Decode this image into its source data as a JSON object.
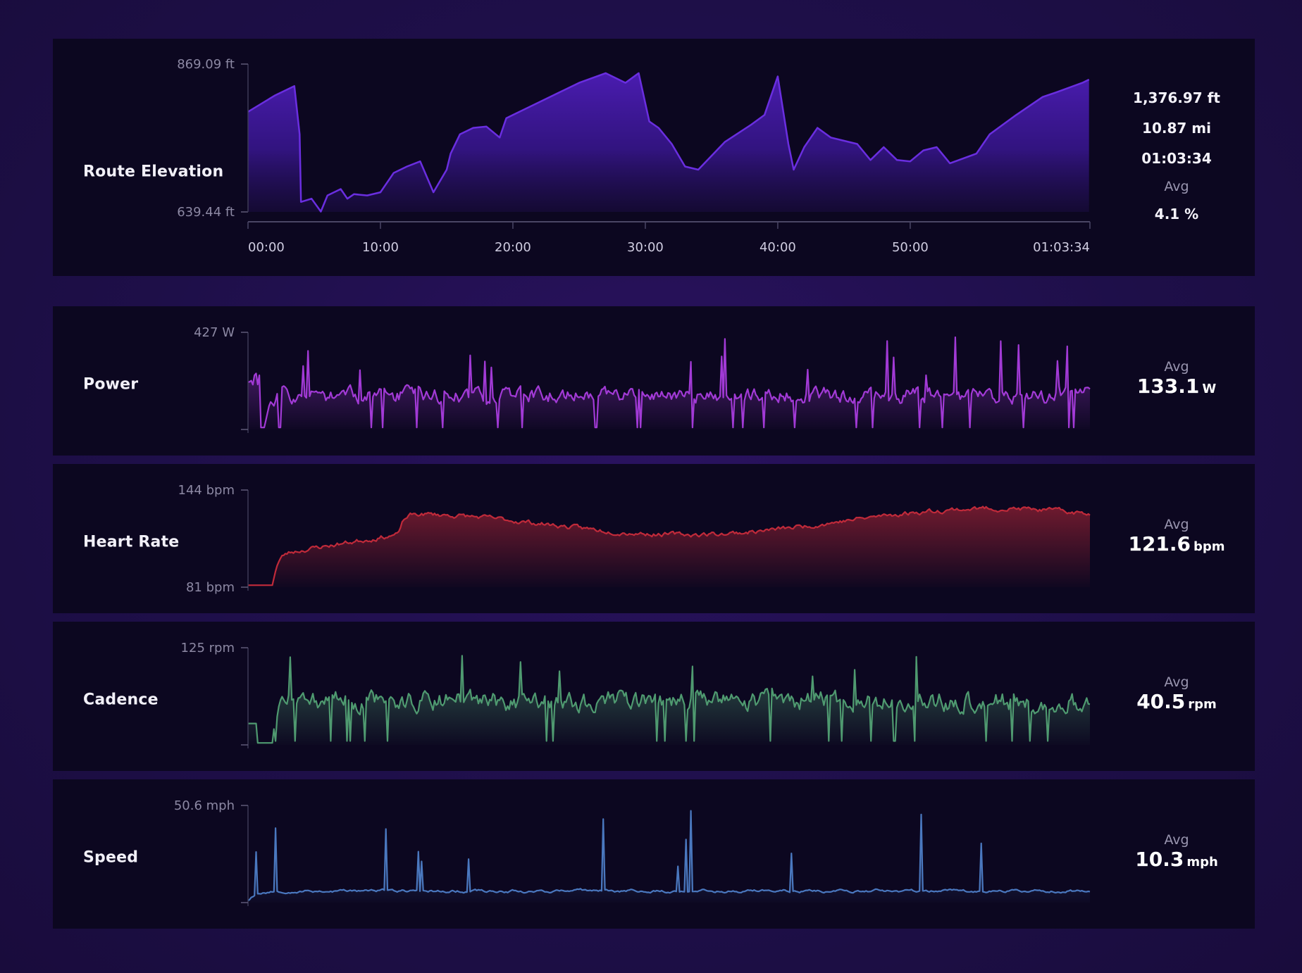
{
  "elevation": {
    "label": "Route Elevation",
    "color": "#6a2ee0",
    "stats": [
      "1,376.97 ft",
      "10.87 mi",
      "01:03:34"
    ],
    "avg_label": "Avg",
    "avg_value": "4.1 %",
    "y_ticks": [
      "869.09 ft",
      "639.44 ft"
    ],
    "x_ticks": [
      "00:00",
      "10:00",
      "20:00",
      "30:00",
      "40:00",
      "50:00",
      "01:03:34"
    ]
  },
  "metrics": [
    {
      "key": "power",
      "label": "Power",
      "max_label": "427 W",
      "min_label": "",
      "avg_label": "Avg",
      "avg_value": "133.1",
      "avg_unit": "W",
      "color": "#a23ad6"
    },
    {
      "key": "heart",
      "label": "Heart Rate",
      "max_label": "144 bpm",
      "min_label": "81 bpm",
      "avg_label": "Avg",
      "avg_value": "121.6",
      "avg_unit": "bpm",
      "color": "#c02a3a"
    },
    {
      "key": "cadence",
      "label": "Cadence",
      "max_label": "125 rpm",
      "min_label": "",
      "avg_label": "Avg",
      "avg_value": "40.5",
      "avg_unit": "rpm",
      "color": "#4f9a70"
    },
    {
      "key": "speed",
      "label": "Speed",
      "max_label": "50.6 mph",
      "min_label": "",
      "avg_label": "Avg",
      "avg_value": "10.3",
      "avg_unit": "mph",
      "color": "#4a78bf"
    }
  ],
  "chart_data": [
    {
      "type": "area",
      "title": "Route Elevation",
      "xlabel": "",
      "ylabel": "",
      "x_ticks": [
        "00:00",
        "10:00",
        "20:00",
        "30:00",
        "40:00",
        "50:00",
        "01:03:34"
      ],
      "ylim": [
        639.44,
        869.09
      ],
      "x": [
        0,
        2,
        3.5,
        3.9,
        4,
        4.8,
        5.5,
        6,
        7,
        7.5,
        8,
        9,
        10,
        11,
        12,
        13,
        14,
        15,
        15.3,
        16,
        17,
        18,
        19,
        19.5,
        20,
        22,
        23.5,
        25,
        27,
        28.5,
        29.5,
        30.3,
        31,
        32,
        33,
        34,
        36,
        38,
        39,
        40,
        40.8,
        41.2,
        42,
        43,
        44,
        46,
        47,
        48,
        49,
        50,
        51,
        52,
        53,
        55,
        56,
        58,
        60,
        61,
        63,
        63.5
      ],
      "y": [
        795,
        820,
        835,
        760,
        655,
        660,
        640,
        665,
        675,
        660,
        667,
        665,
        670,
        700,
        710,
        718,
        670,
        705,
        730,
        760,
        770,
        772,
        755,
        785,
        790,
        810,
        825,
        840,
        855,
        840,
        855,
        780,
        770,
        745,
        710,
        705,
        748,
        775,
        790,
        850,
        745,
        705,
        740,
        770,
        755,
        745,
        720,
        740,
        720,
        718,
        735,
        740,
        715,
        730,
        760,
        790,
        818,
        825,
        840,
        845
      ],
      "series": []
    },
    {
      "type": "line",
      "title": "Power",
      "ylim": [
        0,
        427
      ],
      "x": [
        0,
        63.57
      ],
      "y_note": "",
      "series": []
    },
    {
      "type": "line",
      "title": "Heart Rate",
      "ylim": [
        81,
        144
      ],
      "x": [
        0,
        63.57
      ],
      "series": []
    },
    {
      "type": "line",
      "title": "Cadence",
      "ylim": [
        0,
        125
      ],
      "x": [
        0,
        63.57
      ],
      "series": []
    },
    {
      "type": "line",
      "title": "Speed",
      "ylim": [
        0,
        50.6
      ],
      "x": [
        0,
        63.57
      ],
      "series": []
    }
  ]
}
